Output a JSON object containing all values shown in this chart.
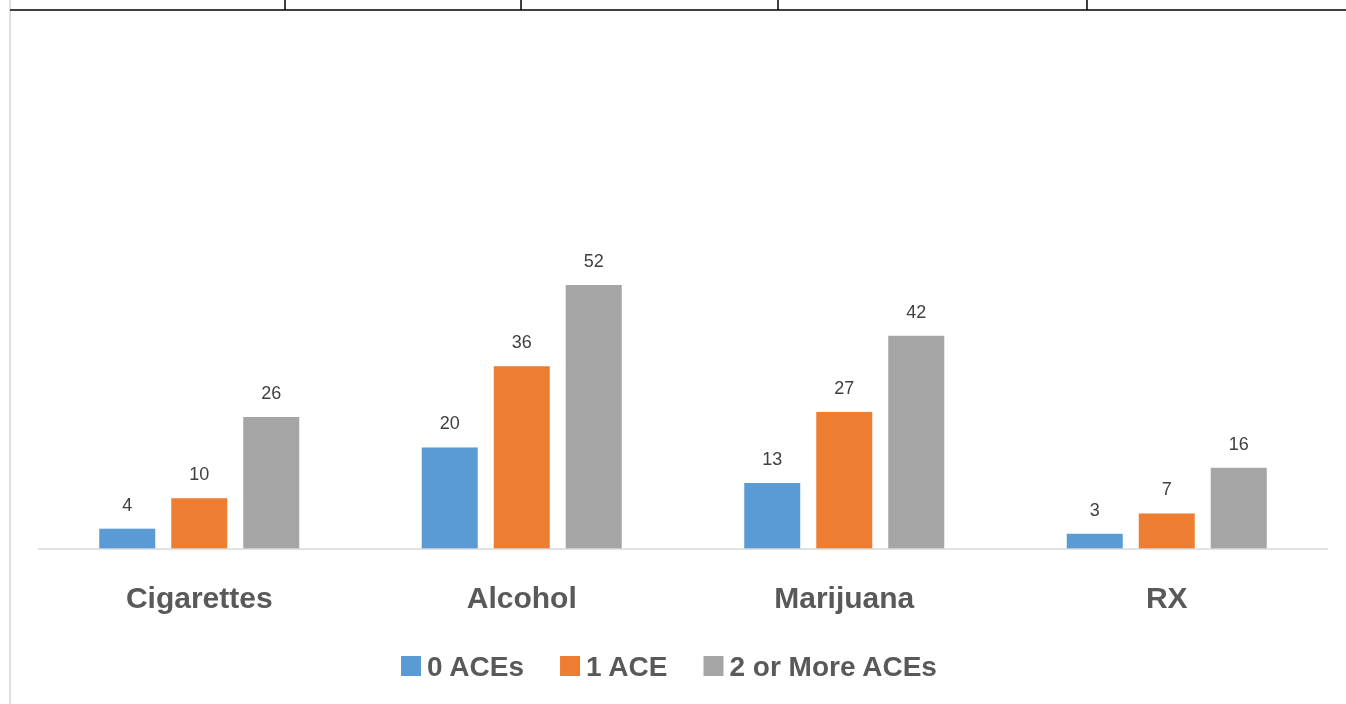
{
  "chart_data": {
    "type": "bar",
    "categories": [
      "Cigarettes",
      "Alcohol",
      "Marijuana",
      "RX"
    ],
    "series": [
      {
        "name": "0 ACEs",
        "color": "#5b9bd5",
        "values": [
          4,
          20,
          13,
          3
        ]
      },
      {
        "name": "1 ACE",
        "color": "#ed7d31",
        "values": [
          10,
          36,
          27,
          7
        ]
      },
      {
        "name": "2 or More ACEs",
        "color": "#a5a5a5",
        "values": [
          26,
          52,
          42,
          16
        ]
      }
    ],
    "data_labels": true,
    "legend": "bottom"
  }
}
